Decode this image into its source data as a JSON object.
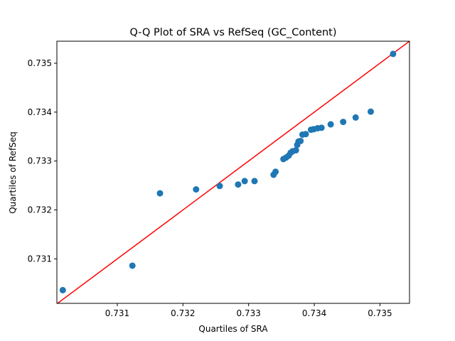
{
  "chart_data": {
    "type": "scatter",
    "title": "Q-Q Plot of SRA vs RefSeq (GC_Content)",
    "xlabel": "Quartiles of SRA",
    "ylabel": "Quartiles of RefSeq",
    "xlim": [
      0.73008,
      0.73545
    ],
    "ylim": [
      0.73009,
      0.73545
    ],
    "xticks": [
      0.731,
      0.732,
      0.733,
      0.734,
      0.735
    ],
    "xtick_labels": [
      "0.731",
      "0.732",
      "0.733",
      "0.734",
      "0.735"
    ],
    "yticks": [
      0.731,
      0.732,
      0.733,
      0.734,
      0.735
    ],
    "ytick_labels": [
      "0.731",
      "0.732",
      "0.733",
      "0.734",
      "0.735"
    ],
    "grid": false,
    "legend": "none",
    "reference_line": {
      "type": "y=x",
      "color": "#ff0000"
    },
    "point_color": "#1f77b4",
    "points": [
      [
        0.73017,
        0.73036
      ],
      [
        0.73123,
        0.73086
      ],
      [
        0.73165,
        0.73234
      ],
      [
        0.7322,
        0.73242
      ],
      [
        0.73256,
        0.73249
      ],
      [
        0.73284,
        0.73252
      ],
      [
        0.73294,
        0.73259
      ],
      [
        0.73309,
        0.73259
      ],
      [
        0.73338,
        0.73272
      ],
      [
        0.73341,
        0.73278
      ],
      [
        0.73353,
        0.73304
      ],
      [
        0.73357,
        0.73307
      ],
      [
        0.73361,
        0.73311
      ],
      [
        0.73364,
        0.73317
      ],
      [
        0.73367,
        0.7332
      ],
      [
        0.73372,
        0.73322
      ],
      [
        0.73374,
        0.73333
      ],
      [
        0.73376,
        0.7334
      ],
      [
        0.73379,
        0.73341
      ],
      [
        0.73382,
        0.73354
      ],
      [
        0.73387,
        0.73355
      ],
      [
        0.73395,
        0.73364
      ],
      [
        0.73399,
        0.73365
      ],
      [
        0.73405,
        0.73367
      ],
      [
        0.73411,
        0.73368
      ],
      [
        0.73425,
        0.73375
      ],
      [
        0.73444,
        0.7338
      ],
      [
        0.73463,
        0.73389
      ],
      [
        0.73486,
        0.73401
      ],
      [
        0.7352,
        0.73519
      ]
    ]
  }
}
